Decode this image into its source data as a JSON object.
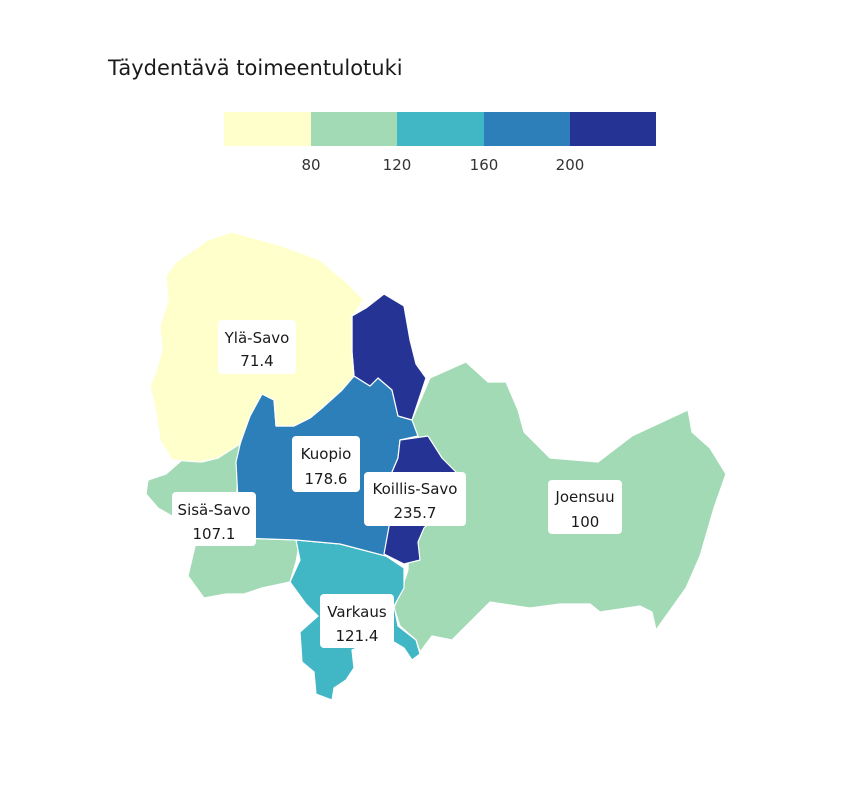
{
  "title": "Täydentävä toimeentulotuki",
  "legend": {
    "colors": [
      "#ffffcc",
      "#a1dab4",
      "#41b6c4",
      "#2c7fb8",
      "#253494"
    ],
    "breaks": [
      "80",
      "120",
      "160",
      "200"
    ]
  },
  "regions": [
    {
      "name": "Ylä-Savo",
      "value": "71.4",
      "color": "#ffffcc"
    },
    {
      "name": "Kuopio",
      "value": "178.6",
      "color": "#2c7fb8"
    },
    {
      "name": "Koillis-Savo",
      "value": "235.7",
      "color": "#253494"
    },
    {
      "name": "Sisä-Savo",
      "value": "107.1",
      "color": "#a1dab4"
    },
    {
      "name": "Varkaus",
      "value": "121.4",
      "color": "#41b6c4"
    },
    {
      "name": "Joensuu",
      "value": "100",
      "color": "#a1dab4"
    }
  ]
}
